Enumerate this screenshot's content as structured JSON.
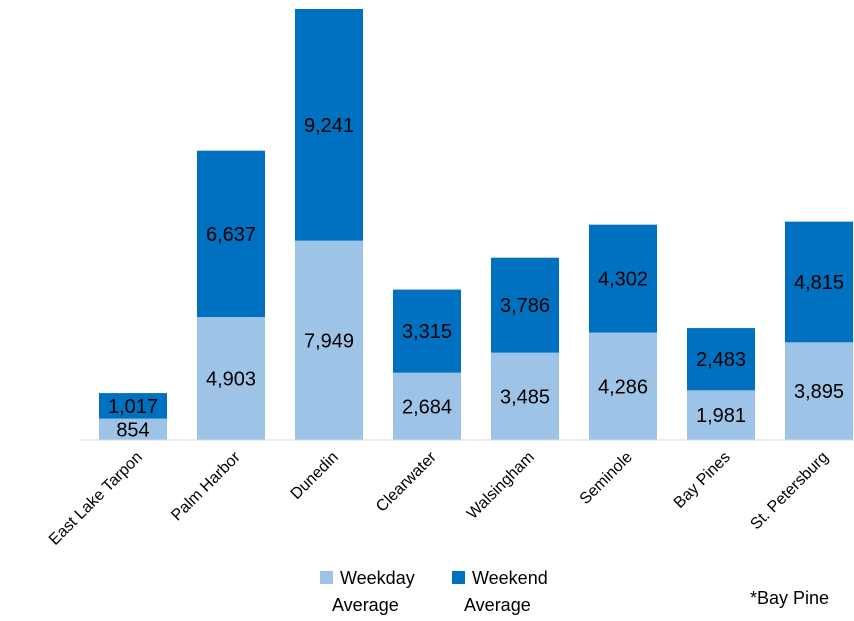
{
  "chart_data": {
    "type": "bar",
    "stacked": true,
    "categories": [
      "East Lake Tarpon",
      "Palm Harbor",
      "Dunedin",
      "Clearwater",
      "Walsingham",
      "Seminole",
      "Bay Pines",
      "St. Petersburg"
    ],
    "series": [
      {
        "name": "Weekday Average",
        "values": [
          854,
          4903,
          7949,
          2684,
          3485,
          4286,
          1981,
          3895
        ],
        "color": "#9DC3E6"
      },
      {
        "name": "Weekend Average",
        "values": [
          1017,
          6637,
          9241,
          3315,
          3786,
          4302,
          2483,
          4815
        ],
        "color": "#0070C0"
      }
    ],
    "value_labels": {
      "Weekday Average": [
        "854",
        "4,903",
        "7,949",
        "2,684",
        "3,485",
        "4,286",
        "1,981",
        "3,895"
      ],
      "Weekend Average": [
        "1,017",
        "6,637",
        "9,241",
        "3,315",
        "3,786",
        "4,302",
        "2,483",
        "4,815"
      ]
    },
    "ylim": [
      0,
      17190
    ],
    "grid": false,
    "legend": "bottom",
    "title": "",
    "xlabel": "",
    "ylabel": ""
  },
  "footnote": "*Bay Pine"
}
